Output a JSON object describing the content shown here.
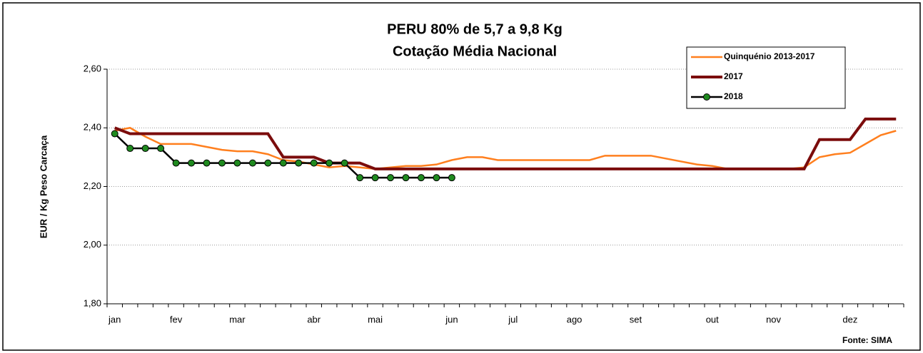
{
  "chart_data": {
    "type": "line",
    "title": [
      "PERU 80% de 5,7 a 9,8 Kg",
      "Cotação Média Nacional"
    ],
    "y_label": "EUR / Kg Peso Carcaça",
    "source": "Fonte: SIMA",
    "categories": [
      "jan",
      null,
      null,
      null,
      "fev",
      null,
      null,
      null,
      "mar",
      null,
      null,
      null,
      null,
      "abr",
      null,
      null,
      null,
      "mai",
      null,
      null,
      null,
      null,
      "jun",
      null,
      null,
      null,
      "jul",
      null,
      null,
      null,
      "ago",
      null,
      null,
      null,
      "set",
      null,
      null,
      null,
      null,
      "out",
      null,
      null,
      null,
      "nov",
      null,
      null,
      null,
      null,
      "dez",
      null,
      null,
      null
    ],
    "ylim": [
      1.8,
      2.6
    ],
    "yticks": [
      {
        "value": 1.8,
        "label": "1,80"
      },
      {
        "value": 2.0,
        "label": "2,00"
      },
      {
        "value": 2.2,
        "label": "2,20"
      },
      {
        "value": 2.4,
        "label": "2,40"
      },
      {
        "value": 2.6,
        "label": "2,60"
      }
    ],
    "grid": true,
    "legend": "upper right",
    "series": [
      {
        "name": "Quinquénio 2013-2017",
        "color": "#ff7f1e",
        "marker": false,
        "values": [
          2.39,
          2.4,
          2.37,
          2.345,
          2.345,
          2.345,
          2.335,
          2.325,
          2.32,
          2.32,
          2.31,
          2.29,
          2.285,
          2.275,
          2.265,
          2.27,
          2.265,
          2.26,
          2.265,
          2.27,
          2.27,
          2.275,
          2.29,
          2.3,
          2.3,
          2.29,
          2.29,
          2.29,
          2.29,
          2.29,
          2.29,
          2.29,
          2.305,
          2.305,
          2.305,
          2.305,
          2.295,
          2.285,
          2.275,
          2.27,
          2.26,
          2.26,
          2.26,
          2.26,
          2.26,
          2.265,
          2.3,
          2.31,
          2.315,
          2.345,
          2.375,
          2.39
        ]
      },
      {
        "name": "2017",
        "color": "#7b0c0c",
        "marker": false,
        "values": [
          2.4,
          2.38,
          2.38,
          2.38,
          2.38,
          2.38,
          2.38,
          2.38,
          2.38,
          2.38,
          2.38,
          2.3,
          2.3,
          2.3,
          2.28,
          2.28,
          2.28,
          2.26,
          2.26,
          2.26,
          2.26,
          2.26,
          2.26,
          2.26,
          2.26,
          2.26,
          2.26,
          2.26,
          2.26,
          2.26,
          2.26,
          2.26,
          2.26,
          2.26,
          2.26,
          2.26,
          2.26,
          2.26,
          2.26,
          2.26,
          2.26,
          2.26,
          2.26,
          2.26,
          2.26,
          2.26,
          2.36,
          2.36,
          2.36,
          2.43,
          2.43,
          2.43
        ]
      },
      {
        "name": "2018",
        "color": "#000000",
        "marker": true,
        "marker_color": "#1f8a1f",
        "values": [
          2.38,
          2.33,
          2.33,
          2.33,
          2.28,
          2.28,
          2.28,
          2.28,
          2.28,
          2.28,
          2.28,
          2.28,
          2.28,
          2.28,
          2.28,
          2.28,
          2.23,
          2.23,
          2.23,
          2.23,
          2.23,
          2.23,
          2.23,
          null,
          null,
          null,
          null,
          null,
          null,
          null,
          null,
          null,
          null,
          null,
          null,
          null,
          null,
          null,
          null,
          null,
          null,
          null,
          null,
          null,
          null,
          null,
          null,
          null,
          null,
          null,
          null,
          null
        ]
      }
    ]
  }
}
